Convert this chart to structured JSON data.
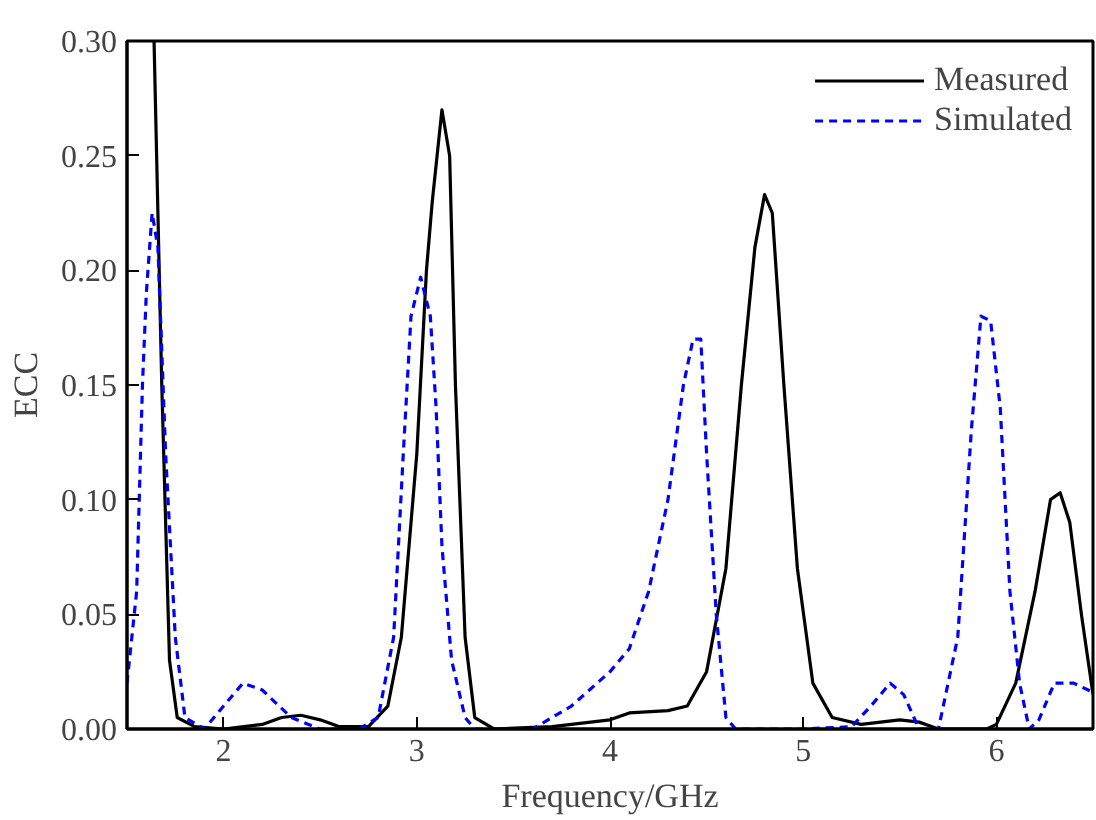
{
  "chart_data": {
    "type": "line",
    "xlabel": "Frequency/GHz",
    "ylabel": "ECC",
    "xlim": [
      1.5,
      6.5
    ],
    "xticks": [
      2,
      3,
      4,
      5,
      6
    ],
    "ylim": [
      0,
      0.3
    ],
    "yticks": [
      {
        "value": 0,
        "label": "0.00"
      },
      {
        "value": 0.05,
        "label": "0.05"
      },
      {
        "value": 0.1,
        "label": "0.10"
      },
      {
        "value": 0.15,
        "label": "0.15"
      },
      {
        "value": 0.2,
        "label": "0.20"
      },
      {
        "value": 0.25,
        "label": "0.25"
      },
      {
        "value": 0.3,
        "label": "0.30"
      }
    ],
    "grid": false,
    "legend": "top right",
    "marker": "none",
    "series": [
      {
        "name": "Measured",
        "color": "#000000",
        "line_style": "solid",
        "x": [
          1.64,
          1.68,
          1.72,
          1.76,
          1.85,
          2.0,
          2.2,
          2.3,
          2.4,
          2.5,
          2.6,
          2.75,
          2.85,
          2.92,
          3.0,
          3.05,
          3.08,
          3.13,
          3.17,
          3.2,
          3.25,
          3.3,
          3.4,
          3.7,
          4.0,
          4.1,
          4.3,
          4.4,
          4.5,
          4.6,
          4.68,
          4.75,
          4.8,
          4.84,
          4.9,
          4.97,
          5.05,
          5.15,
          5.3,
          5.5,
          5.6,
          5.7,
          5.95,
          6.0,
          6.1,
          6.2,
          6.28,
          6.33,
          6.38,
          6.44,
          6.5
        ],
        "values": [
          0.3,
          0.15,
          0.03,
          0.005,
          0.001,
          0.0,
          0.002,
          0.005,
          0.006,
          0.004,
          0.001,
          0.001,
          0.01,
          0.04,
          0.12,
          0.2,
          0.23,
          0.27,
          0.25,
          0.15,
          0.04,
          0.005,
          0.0,
          0.001,
          0.004,
          0.007,
          0.008,
          0.01,
          0.025,
          0.07,
          0.15,
          0.21,
          0.233,
          0.225,
          0.15,
          0.07,
          0.02,
          0.005,
          0.002,
          0.004,
          0.003,
          0.0,
          0.0,
          0.002,
          0.02,
          0.06,
          0.1,
          0.103,
          0.09,
          0.05,
          0.015
        ]
      },
      {
        "name": "Simulated",
        "color": "#0000ff",
        "line_style": "dashed",
        "x": [
          1.5,
          1.55,
          1.58,
          1.6,
          1.63,
          1.66,
          1.7,
          1.75,
          1.8,
          1.9,
          2.0,
          2.1,
          2.2,
          2.35,
          2.5,
          2.7,
          2.8,
          2.88,
          2.93,
          2.97,
          3.02,
          3.07,
          3.1,
          3.13,
          3.18,
          3.25,
          3.3,
          3.6,
          3.8,
          4.0,
          4.1,
          4.2,
          4.3,
          4.38,
          4.43,
          4.47,
          4.5,
          4.55,
          4.6,
          4.65,
          5.0,
          5.25,
          5.35,
          5.45,
          5.52,
          5.6,
          5.7,
          5.8,
          5.87,
          5.92,
          5.97,
          6.02,
          6.07,
          6.12,
          6.17,
          6.22,
          6.3,
          6.4,
          6.5
        ],
        "values": [
          0.02,
          0.06,
          0.15,
          0.19,
          0.225,
          0.21,
          0.12,
          0.04,
          0.005,
          0.0,
          0.01,
          0.02,
          0.017,
          0.005,
          0.0,
          0.0,
          0.005,
          0.04,
          0.12,
          0.18,
          0.197,
          0.18,
          0.14,
          0.08,
          0.03,
          0.005,
          0.0,
          0.0,
          0.01,
          0.025,
          0.035,
          0.06,
          0.1,
          0.15,
          0.17,
          0.17,
          0.12,
          0.05,
          0.005,
          0.0,
          0.0,
          0.001,
          0.01,
          0.02,
          0.015,
          0.0,
          0.0,
          0.04,
          0.13,
          0.18,
          0.178,
          0.14,
          0.06,
          0.02,
          0.0,
          0.004,
          0.02,
          0.02,
          0.016
        ]
      }
    ]
  }
}
